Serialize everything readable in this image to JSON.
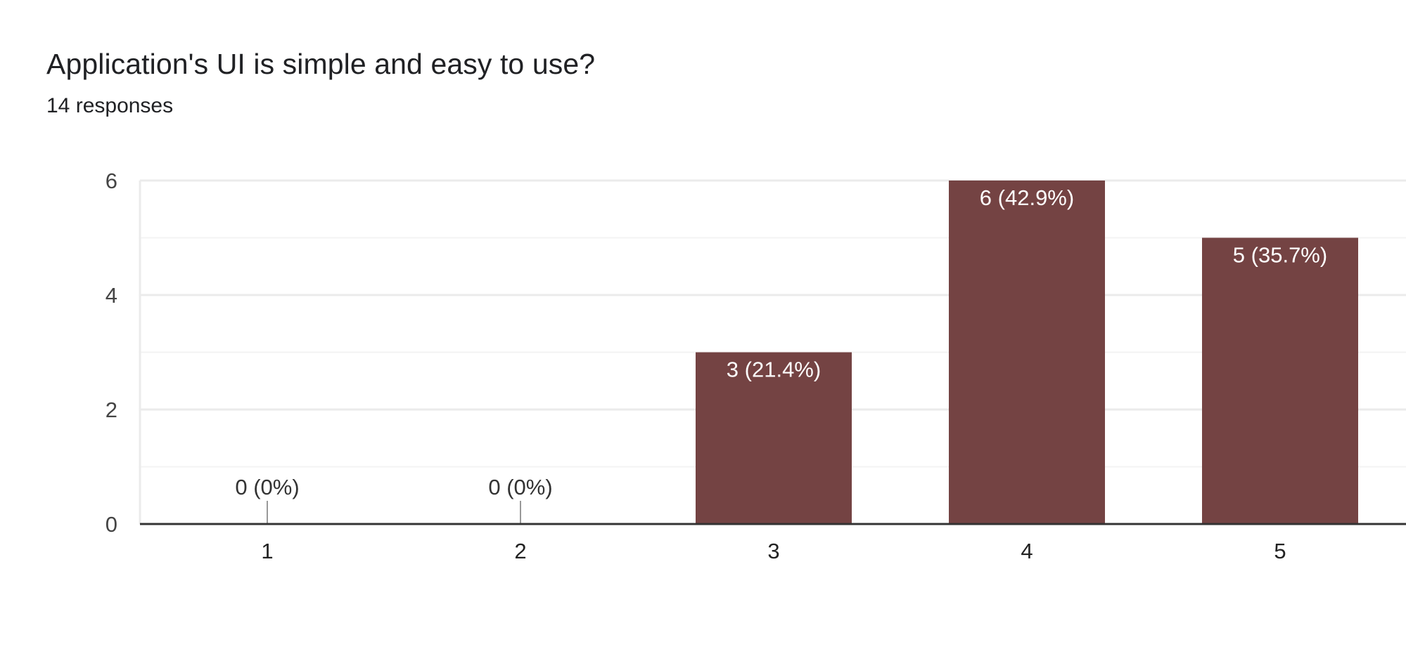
{
  "question": {
    "title": "Application's UI is simple and easy to use?",
    "responses": "14 responses"
  },
  "colors": {
    "bar": "#744343",
    "grid": "#ebebeb",
    "minor_grid": "#f3f3f3",
    "baseline": "#333333",
    "zero_tick": "#999999",
    "label_inside": "#ffffff",
    "label_outside": "#333333"
  },
  "chart_data": {
    "type": "bar",
    "categories": [
      "1",
      "2",
      "3",
      "4",
      "5"
    ],
    "values": [
      0,
      0,
      3,
      6,
      5
    ],
    "data_labels": [
      "0 (0%)",
      "0 (0%)",
      "3 (21.4%)",
      "6 (42.9%)",
      "5 (35.7%)"
    ],
    "ylim": [
      0,
      6
    ],
    "yticks": [
      0,
      2,
      4,
      6
    ],
    "ytick_labels": [
      "0",
      "2",
      "4",
      "6"
    ],
    "grid": true,
    "legend": "none"
  }
}
